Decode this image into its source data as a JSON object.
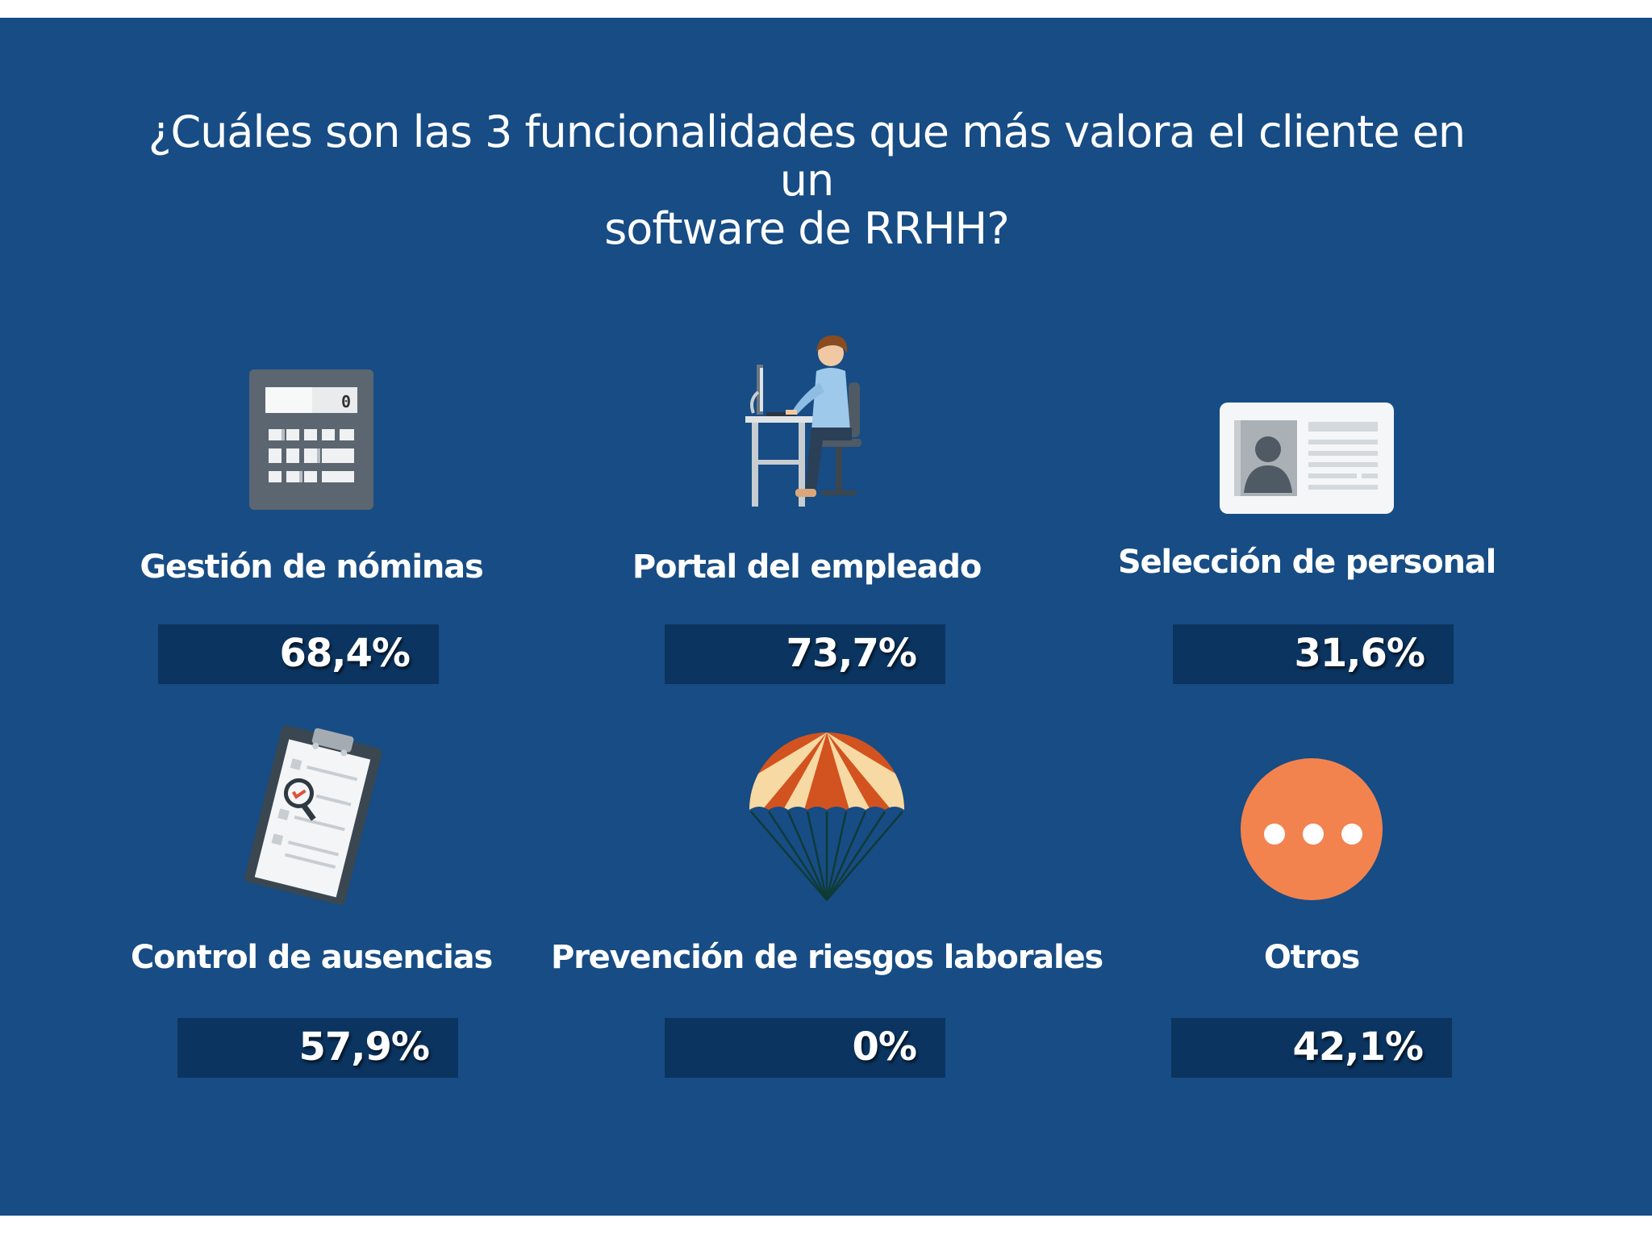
{
  "title": {
    "line1": "¿Cuáles son las 3 funcionalidades que más valora el cliente en un",
    "line2": "software de RRHH?"
  },
  "items": [
    {
      "label": "Gestión de nóminas",
      "value": "68,4%",
      "icon": "calculator-icon"
    },
    {
      "label": "Portal del empleado",
      "value": "73,7%",
      "icon": "employee-at-desk-icon"
    },
    {
      "label": "Selección de personal",
      "value": "31,6%",
      "icon": "id-card-icon"
    },
    {
      "label": "Control de ausencias",
      "value": "57,9%",
      "icon": "clipboard-checklist-icon"
    },
    {
      "label": "Prevención de riesgos laborales",
      "value": "0%",
      "icon": "parachute-icon"
    },
    {
      "label": "Otros",
      "value": "42,1%",
      "icon": "more-dots-icon"
    }
  ],
  "calculator": {
    "display": "0"
  },
  "colors": {
    "background": "#174c84",
    "value_box": "#0b3460",
    "text": "#ffffff",
    "accent_orange": "#f2834f",
    "parachute_red": "#d2531f",
    "parachute_cream": "#f6d9a3"
  }
}
